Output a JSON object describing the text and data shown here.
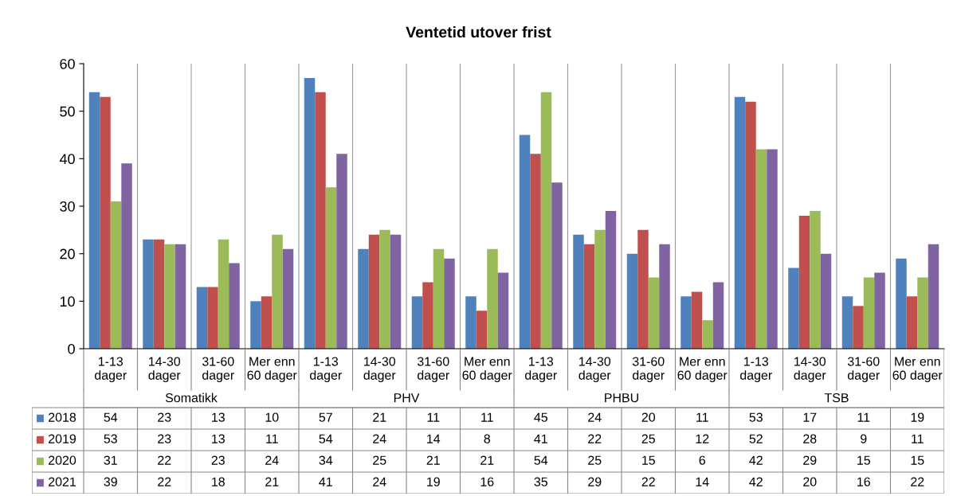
{
  "chart_data": {
    "type": "bar",
    "title": "Ventetid utover frist",
    "categories": [
      "1-13\ndager",
      "14-30\ndager",
      "31-60\ndager",
      "Mer enn\n60 dager",
      "1-13\ndager",
      "14-30\ndager",
      "31-60\ndager",
      "Mer enn\n60 dager",
      "1-13\ndager",
      "14-30\ndager",
      "31-60\ndager",
      "Mer enn\n60 dager",
      "1-13\ndager",
      "14-30\ndager",
      "31-60\ndager",
      "Mer enn\n60 dager"
    ],
    "annotations": [
      "Somatikk",
      "PHV",
      "PHBU",
      "TSB"
    ],
    "series": [
      {
        "name": "2018",
        "color": "#4f81bd",
        "values": [
          54,
          23,
          13,
          10,
          57,
          21,
          11,
          11,
          45,
          24,
          20,
          11,
          53,
          17,
          11,
          19
        ]
      },
      {
        "name": "2019",
        "color": "#c0504d",
        "values": [
          53,
          23,
          13,
          11,
          54,
          24,
          14,
          8,
          41,
          22,
          25,
          12,
          52,
          28,
          9,
          11
        ]
      },
      {
        "name": "2020",
        "color": "#9bbb59",
        "values": [
          31,
          22,
          23,
          24,
          34,
          25,
          21,
          21,
          54,
          25,
          15,
          6,
          42,
          29,
          15,
          15
        ]
      },
      {
        "name": "2021",
        "color": "#8064a2",
        "values": [
          39,
          22,
          18,
          21,
          41,
          24,
          19,
          16,
          35,
          29,
          22,
          14,
          42,
          20,
          16,
          22
        ]
      }
    ],
    "ylim": [
      0,
      60
    ],
    "yticks": [
      0,
      10,
      20,
      30,
      40,
      50,
      60
    ],
    "grid": "x",
    "data_labels": true,
    "legend": "bottom left"
  }
}
